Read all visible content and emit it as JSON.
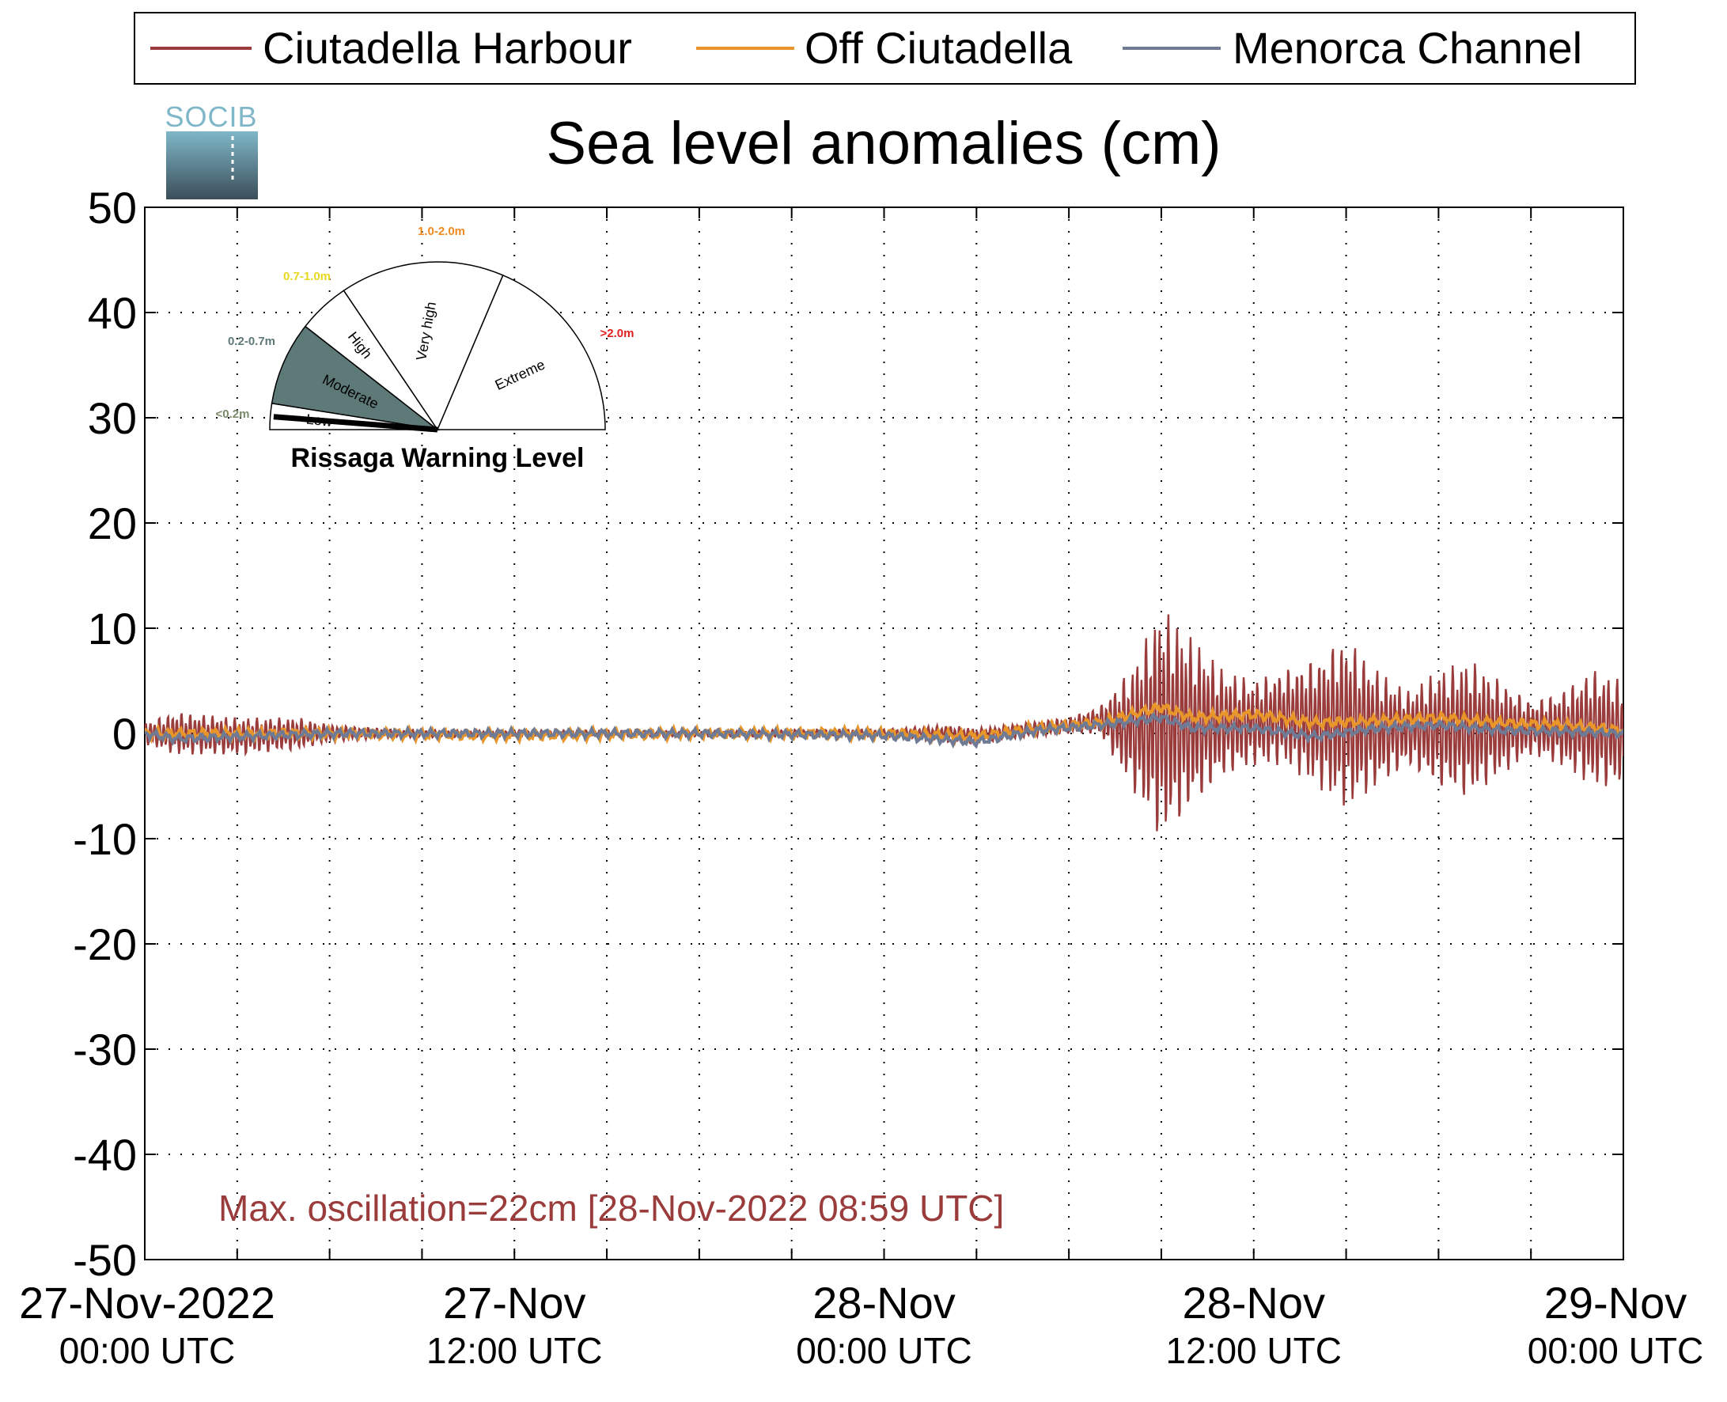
{
  "chart_data": {
    "type": "line",
    "title": "Sea level anomalies (cm)",
    "ylim": [
      -50,
      50
    ],
    "yticks": [
      -50,
      -40,
      -30,
      -20,
      -10,
      0,
      10,
      20,
      30,
      40,
      50
    ],
    "xlim": [
      "2022-11-27 00:00",
      "2022-11-29 00:00"
    ],
    "x_unit": "UTC",
    "x_minor_step_hours": 3,
    "xtick_labels": [
      {
        "x": "2022-11-27 00:00",
        "line1": "27-Nov-2022",
        "line2": "00:00 UTC"
      },
      {
        "x": "2022-11-27 12:00",
        "line1": "27-Nov",
        "line2": "12:00 UTC"
      },
      {
        "x": "2022-11-28 00:00",
        "line1": "28-Nov",
        "line2": "00:00 UTC"
      },
      {
        "x": "2022-11-28 12:00",
        "line1": "28-Nov",
        "line2": "12:00 UTC"
      },
      {
        "x": "2022-11-29 00:00",
        "line1": "29-Nov",
        "line2": "00:00 UTC"
      }
    ],
    "grid": true,
    "legend_position": "top",
    "series": [
      {
        "name": "Ciutadella Harbour",
        "color": "#9b3c3c",
        "envelope": [
          {
            "x": "2022-11-27 00:00",
            "min": -1,
            "max": 1
          },
          {
            "x": "2022-11-27 01:00",
            "min": -2,
            "max": 2
          },
          {
            "x": "2022-11-27 03:00",
            "min": -2,
            "max": 1.5
          },
          {
            "x": "2022-11-27 05:00",
            "min": -1.5,
            "max": 1.5
          },
          {
            "x": "2022-11-27 06:00",
            "min": -0.8,
            "max": 0.8
          },
          {
            "x": "2022-11-27 08:00",
            "min": -0.4,
            "max": 0.4
          },
          {
            "x": "2022-11-27 12:00",
            "min": -0.3,
            "max": 0.3
          },
          {
            "x": "2022-11-27 18:00",
            "min": -0.3,
            "max": 0.3
          },
          {
            "x": "2022-11-28 00:00",
            "min": -0.4,
            "max": 0.4
          },
          {
            "x": "2022-11-28 02:00",
            "min": -0.8,
            "max": 0.8
          },
          {
            "x": "2022-11-28 03:00",
            "min": -1,
            "max": 0.5
          },
          {
            "x": "2022-11-28 04:00",
            "min": -0.5,
            "max": 0.8
          },
          {
            "x": "2022-11-28 06:00",
            "min": 0,
            "max": 1.5
          },
          {
            "x": "2022-11-28 07:00",
            "min": 0,
            "max": 2.5
          },
          {
            "x": "2022-11-28 08:00",
            "min": -5,
            "max": 6
          },
          {
            "x": "2022-11-28 09:00",
            "min": -10,
            "max": 12
          },
          {
            "x": "2022-11-28 10:00",
            "min": -7,
            "max": 9
          },
          {
            "x": "2022-11-28 11:00",
            "min": -4,
            "max": 6
          },
          {
            "x": "2022-11-28 12:00",
            "min": -3,
            "max": 5
          },
          {
            "x": "2022-11-28 13:00",
            "min": -3,
            "max": 6
          },
          {
            "x": "2022-11-28 14:00",
            "min": -5,
            "max": 7
          },
          {
            "x": "2022-11-28 15:00",
            "min": -7,
            "max": 9
          },
          {
            "x": "2022-11-28 16:00",
            "min": -5,
            "max": 6
          },
          {
            "x": "2022-11-28 17:00",
            "min": -3,
            "max": 4
          },
          {
            "x": "2022-11-28 18:00",
            "min": -5,
            "max": 6
          },
          {
            "x": "2022-11-28 19:00",
            "min": -6,
            "max": 7
          },
          {
            "x": "2022-11-28 20:00",
            "min": -4,
            "max": 5
          },
          {
            "x": "2022-11-28 21:00",
            "min": -2,
            "max": 3
          },
          {
            "x": "2022-11-28 22:00",
            "min": -3,
            "max": 4
          },
          {
            "x": "2022-11-28 23:00",
            "min": -5,
            "max": 6
          },
          {
            "x": "2022-11-29 00:00",
            "min": -5,
            "max": 5
          }
        ]
      },
      {
        "name": "Off Ciutadella",
        "color": "#e8962a",
        "points": [
          {
            "x": "2022-11-27 00:00",
            "y": 0
          },
          {
            "x": "2022-11-27 06:00",
            "y": 0
          },
          {
            "x": "2022-11-27 12:00",
            "y": -0.2
          },
          {
            "x": "2022-11-27 18:00",
            "y": 0
          },
          {
            "x": "2022-11-28 00:00",
            "y": 0
          },
          {
            "x": "2022-11-28 03:00",
            "y": -0.3
          },
          {
            "x": "2022-11-28 05:00",
            "y": 0.5
          },
          {
            "x": "2022-11-28 07:00",
            "y": 1
          },
          {
            "x": "2022-11-28 09:00",
            "y": 2.5
          },
          {
            "x": "2022-11-28 10:00",
            "y": 1.5
          },
          {
            "x": "2022-11-28 12:00",
            "y": 1.8
          },
          {
            "x": "2022-11-28 14:00",
            "y": 1
          },
          {
            "x": "2022-11-28 16:00",
            "y": 1.2
          },
          {
            "x": "2022-11-28 18:00",
            "y": 1.5
          },
          {
            "x": "2022-11-28 20:00",
            "y": 1
          },
          {
            "x": "2022-11-28 22:00",
            "y": 0.8
          },
          {
            "x": "2022-11-29 00:00",
            "y": 0.3
          }
        ]
      },
      {
        "name": "Menorca Channel",
        "color": "#6f7b95",
        "points": [
          {
            "x": "2022-11-27 00:00",
            "y": 0
          },
          {
            "x": "2022-11-27 01:00",
            "y": -0.5
          },
          {
            "x": "2022-11-27 06:00",
            "y": 0
          },
          {
            "x": "2022-11-27 12:00",
            "y": 0
          },
          {
            "x": "2022-11-27 18:00",
            "y": 0
          },
          {
            "x": "2022-11-28 00:00",
            "y": -0.2
          },
          {
            "x": "2022-11-28 03:00",
            "y": -0.8
          },
          {
            "x": "2022-11-28 05:00",
            "y": 0.3
          },
          {
            "x": "2022-11-28 07:00",
            "y": 0.8
          },
          {
            "x": "2022-11-28 09:00",
            "y": 1.5
          },
          {
            "x": "2022-11-28 10:00",
            "y": 0.5
          },
          {
            "x": "2022-11-28 12:00",
            "y": 0.5
          },
          {
            "x": "2022-11-28 14:00",
            "y": -0.3
          },
          {
            "x": "2022-11-28 16:00",
            "y": 0.5
          },
          {
            "x": "2022-11-28 18:00",
            "y": 0.8
          },
          {
            "x": "2022-11-28 20:00",
            "y": 0.3
          },
          {
            "x": "2022-11-28 22:00",
            "y": 0.2
          },
          {
            "x": "2022-11-29 00:00",
            "y": 0
          }
        ]
      }
    ],
    "annotations": {
      "max_oscillation": "Max. oscillation=22cm [28-Nov-2022 08:59 UTC]",
      "max_oscillation_color": "#9b3c3c"
    }
  },
  "logo": {
    "text": "SOCIB"
  },
  "gauge": {
    "title": "Rissaga Warning Level",
    "current_level": "Low",
    "highlight_color": "#5e7a78",
    "levels": [
      {
        "name": "Low",
        "range": "<0.2m",
        "range_color": "#7a8a6a"
      },
      {
        "name": "Moderate",
        "range": "0.2-0.7m",
        "range_color": "#5e7a78"
      },
      {
        "name": "High",
        "range": "0.7-1.0m",
        "range_color": "#e8d81e"
      },
      {
        "name": "Very high",
        "range": "1.0-2.0m",
        "range_color": "#f08a1e"
      },
      {
        "name": "Extreme",
        "range": ">2.0m",
        "range_color": "#e02020"
      }
    ]
  }
}
